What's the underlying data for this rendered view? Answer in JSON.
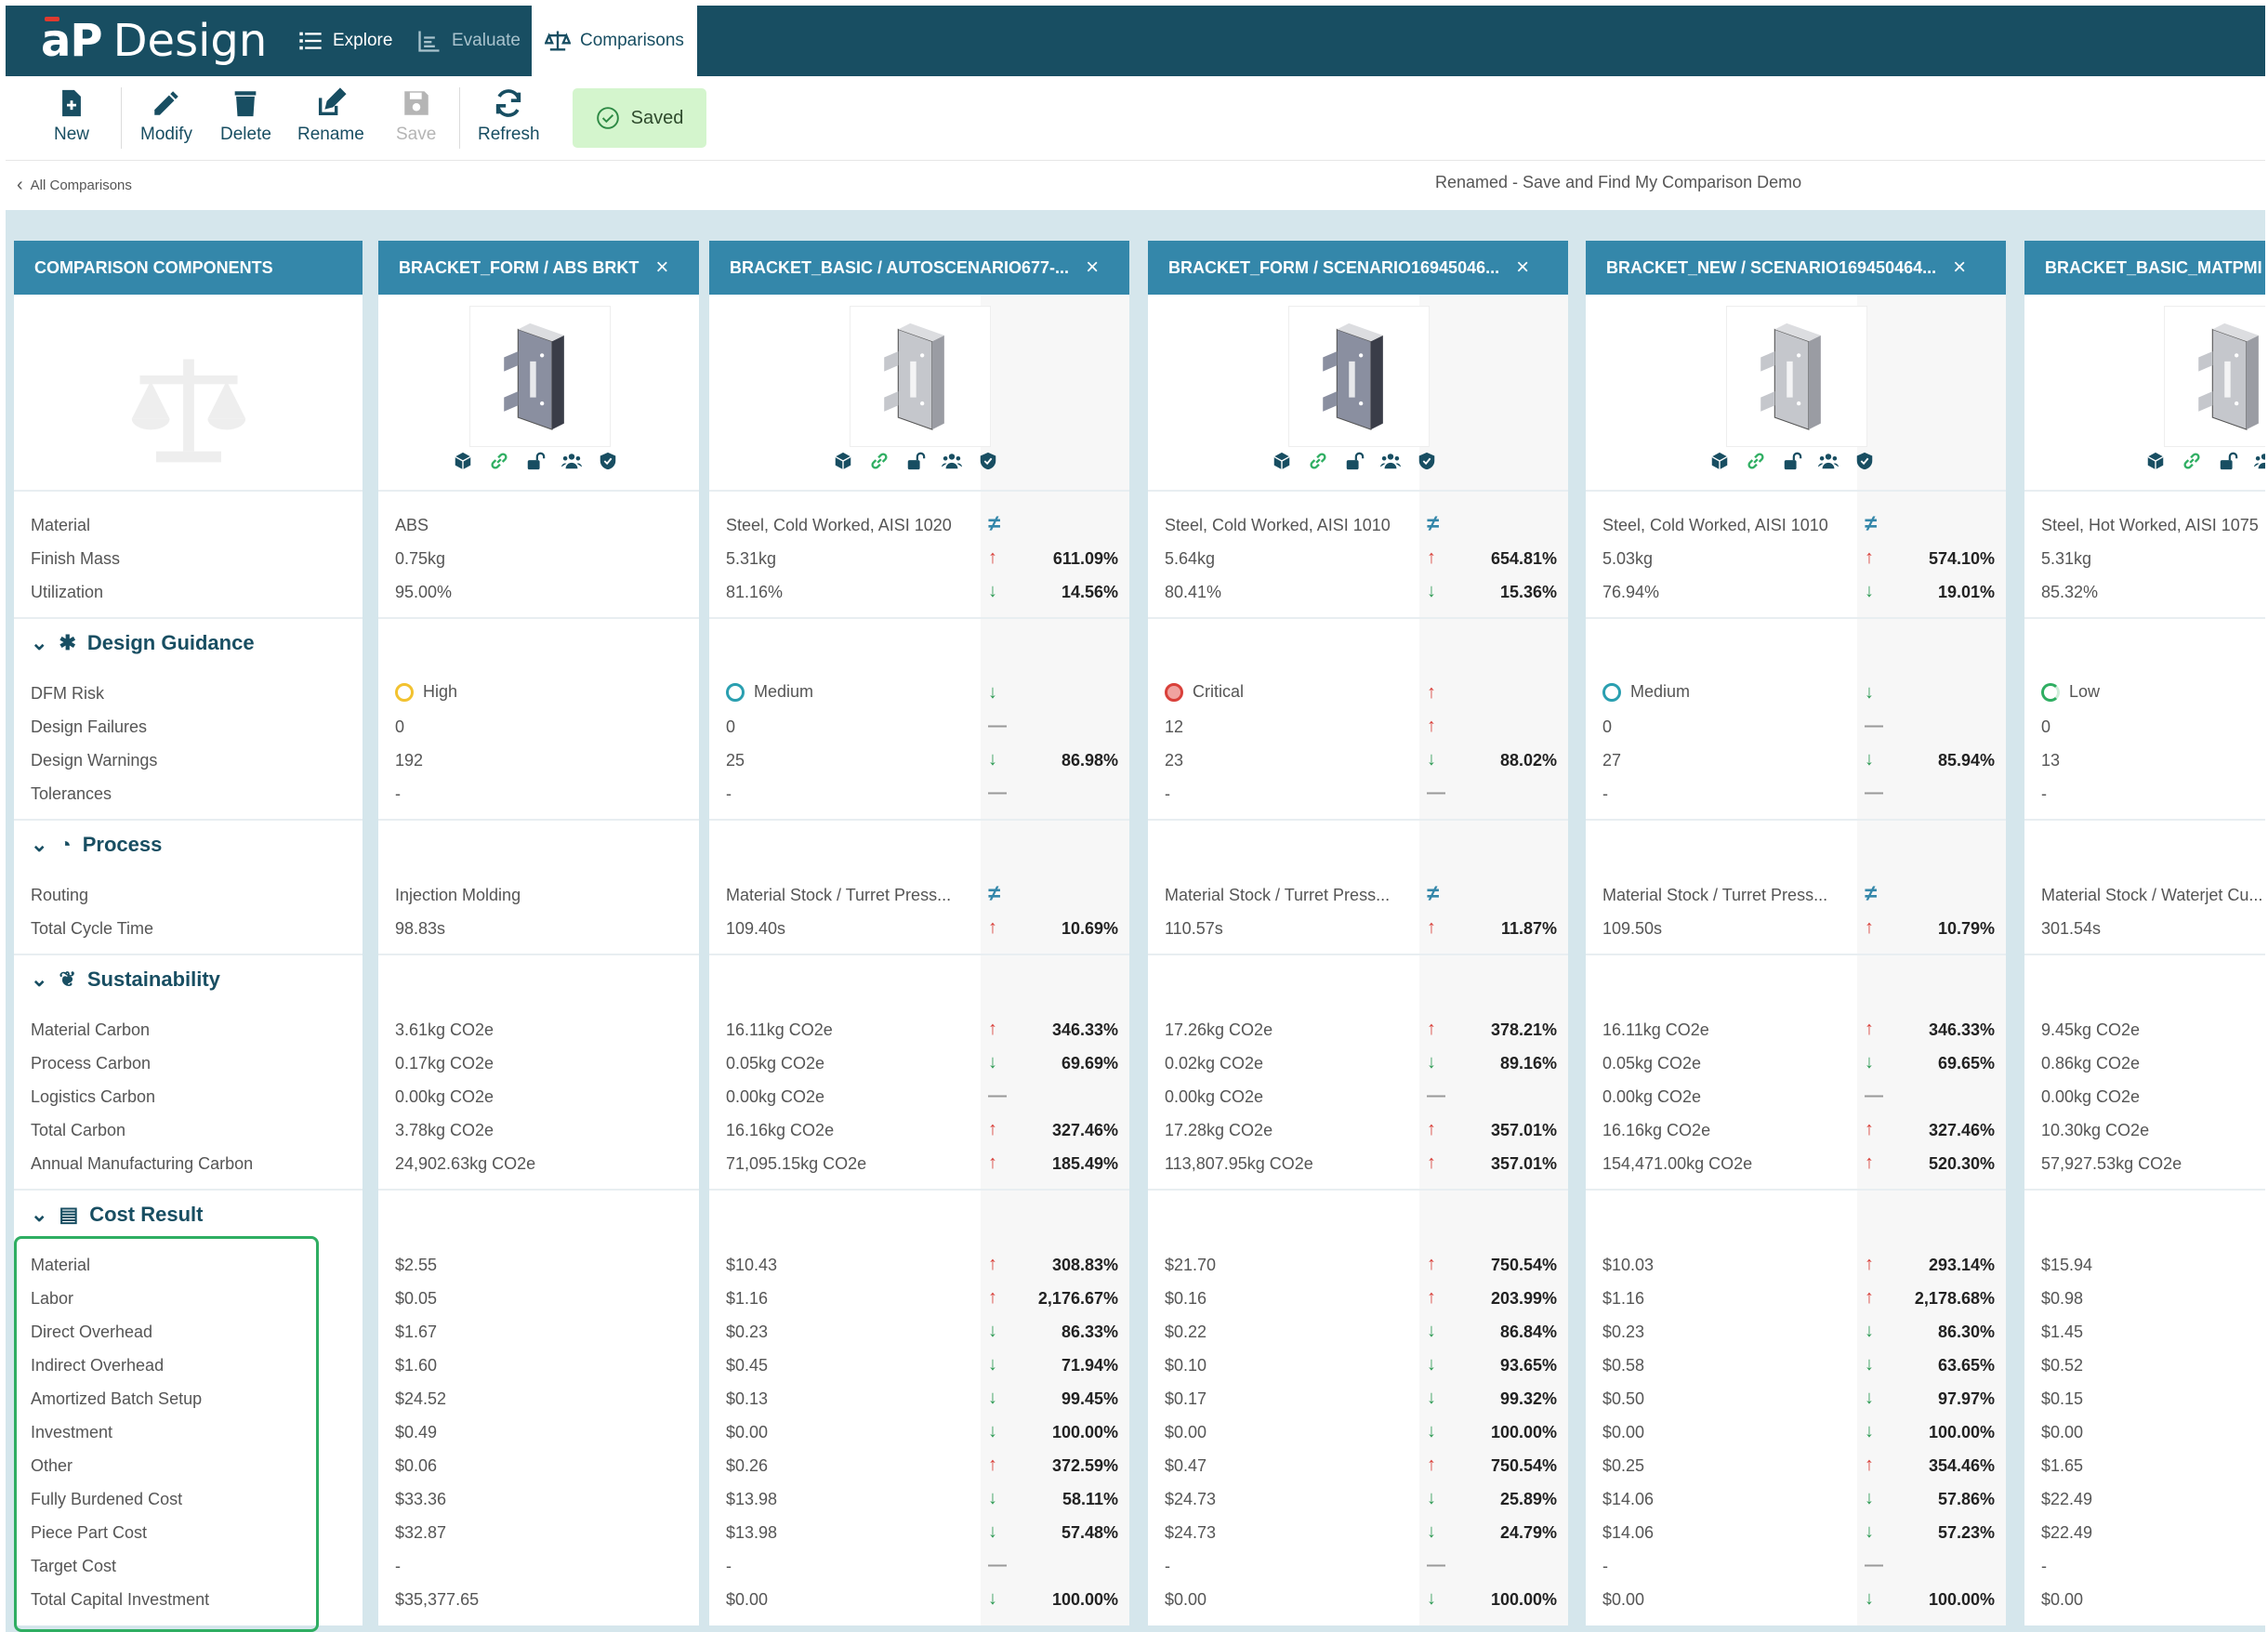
{
  "app": {
    "brand_ap": "aP",
    "brand_design": "Design"
  },
  "nav": {
    "explore": "Explore",
    "evaluate": "Evaluate",
    "comparisons": "Comparisons"
  },
  "toolbar": {
    "new": "New",
    "modify": "Modify",
    "delete": "Delete",
    "rename": "Rename",
    "save": "Save",
    "refresh": "Refresh",
    "saved": "Saved"
  },
  "breadcrumb": {
    "back": "All Comparisons",
    "name": "Renamed - Save and Find My Comparison Demo"
  },
  "labels": {
    "header": "COMPARISON COMPONENTS",
    "material": "Material",
    "finish_mass": "Finish Mass",
    "utilization": "Utilization",
    "design_guidance": "Design Guidance",
    "dfm_risk": "DFM Risk",
    "design_failures": "Design Failures",
    "design_warnings": "Design Warnings",
    "tolerances": "Tolerances",
    "process": "Process",
    "routing": "Routing",
    "total_cycle_time": "Total Cycle Time",
    "sustainability": "Sustainability",
    "material_carbon": "Material Carbon",
    "process_carbon": "Process Carbon",
    "logistics_carbon": "Logistics Carbon",
    "total_carbon": "Total Carbon",
    "annual_carbon": "Annual Manufacturing Carbon",
    "cost_result": "Cost Result",
    "c_material": "Material",
    "c_labor": "Labor",
    "c_direct": "Direct Overhead",
    "c_indirect": "Indirect Overhead",
    "c_batch": "Amortized Batch Setup",
    "c_invest": "Investment",
    "c_other": "Other",
    "c_fbc": "Fully Burdened Cost",
    "c_ppc": "Piece Part Cost",
    "c_target": "Target Cost",
    "c_tci": "Total Capital Investment"
  },
  "columns": [
    {
      "title": "BRACKET_FORM / ABS BRKT",
      "material": "ABS",
      "finish_mass": "0.75kg",
      "utilization": "95.00%",
      "dfm_risk": "High",
      "dfm_color": "#f2c230",
      "design_failures": "0",
      "design_warnings": "192",
      "tolerances": "-",
      "routing": "Injection Molding",
      "total_cycle_time": "98.83s",
      "material_carbon": "3.61kg CO2e",
      "process_carbon": "0.17kg CO2e",
      "logistics_carbon": "0.00kg CO2e",
      "total_carbon": "3.78kg CO2e",
      "annual_carbon": "24,902.63kg CO2e",
      "c_material": "$2.55",
      "c_labor": "$0.05",
      "c_direct": "$1.67",
      "c_indirect": "$1.60",
      "c_batch": "$24.52",
      "c_invest": "$0.49",
      "c_other": "$0.06",
      "c_fbc": "$33.36",
      "c_ppc": "$32.87",
      "c_target": "-",
      "c_tci": "$35,377.65"
    },
    {
      "title": "BRACKET_BASIC / AUTOSCENARIO677-...",
      "material": "Steel, Cold Worked, AISI 1020",
      "finish_mass": "5.31kg",
      "utilization": "81.16%",
      "finish_mass_pct": "611.09%",
      "utilization_pct": "14.56%",
      "dfm_risk": "Medium",
      "dfm_color": "#2a9fb0",
      "design_failures": "0",
      "design_warnings": "25",
      "design_warnings_pct": "86.98%",
      "tolerances": "-",
      "routing": "Material Stock / Turret Press...",
      "total_cycle_time": "109.40s",
      "total_cycle_time_pct": "10.69%",
      "material_carbon": "16.11kg CO2e",
      "material_carbon_pct": "346.33%",
      "process_carbon": "0.05kg CO2e",
      "process_carbon_pct": "69.69%",
      "logistics_carbon": "0.00kg CO2e",
      "total_carbon": "16.16kg CO2e",
      "total_carbon_pct": "327.46%",
      "annual_carbon": "71,095.15kg CO2e",
      "annual_carbon_pct": "185.49%",
      "c_material": "$10.43",
      "c_material_pct": "308.83%",
      "c_labor": "$1.16",
      "c_labor_pct": "2,176.67%",
      "c_direct": "$0.23",
      "c_direct_pct": "86.33%",
      "c_indirect": "$0.45",
      "c_indirect_pct": "71.94%",
      "c_batch": "$0.13",
      "c_batch_pct": "99.45%",
      "c_invest": "$0.00",
      "c_invest_pct": "100.00%",
      "c_other": "$0.26",
      "c_other_pct": "372.59%",
      "c_fbc": "$13.98",
      "c_fbc_pct": "58.11%",
      "c_ppc": "$13.98",
      "c_ppc_pct": "57.48%",
      "c_target": "-",
      "c_tci": "$0.00",
      "c_tci_pct": "100.00%"
    },
    {
      "title": "BRACKET_FORM / SCENARIO16945046...",
      "material": "Steel, Cold Worked, AISI 1010",
      "finish_mass": "5.64kg",
      "utilization": "80.41%",
      "finish_mass_pct": "654.81%",
      "utilization_pct": "15.36%",
      "dfm_risk": "Critical",
      "dfm_color": "#d9403a",
      "design_failures": "12",
      "design_warnings": "23",
      "design_warnings_pct": "88.02%",
      "tolerances": "-",
      "routing": "Material Stock / Turret Press...",
      "total_cycle_time": "110.57s",
      "total_cycle_time_pct": "11.87%",
      "material_carbon": "17.26kg CO2e",
      "material_carbon_pct": "378.21%",
      "process_carbon": "0.02kg CO2e",
      "process_carbon_pct": "89.16%",
      "logistics_carbon": "0.00kg CO2e",
      "total_carbon": "17.28kg CO2e",
      "total_carbon_pct": "357.01%",
      "annual_carbon": "113,807.95kg CO2e",
      "annual_carbon_pct": "357.01%",
      "c_material": "$21.70",
      "c_material_pct": "750.54%",
      "c_labor": "$0.16",
      "c_labor_pct": "203.99%",
      "c_direct": "$0.22",
      "c_direct_pct": "86.84%",
      "c_indirect": "$0.10",
      "c_indirect_pct": "93.65%",
      "c_batch": "$0.17",
      "c_batch_pct": "99.32%",
      "c_invest": "$0.00",
      "c_invest_pct": "100.00%",
      "c_other": "$0.47",
      "c_other_pct": "750.54%",
      "c_fbc": "$24.73",
      "c_fbc_pct": "25.89%",
      "c_ppc": "$24.73",
      "c_ppc_pct": "24.79%",
      "c_target": "-",
      "c_tci": "$0.00",
      "c_tci_pct": "100.00%"
    },
    {
      "title": "BRACKET_NEW / SCENARIO169450464...",
      "material": "Steel, Cold Worked, AISI 1010",
      "finish_mass": "5.03kg",
      "utilization": "76.94%",
      "finish_mass_pct": "574.10%",
      "utilization_pct": "19.01%",
      "dfm_risk": "Medium",
      "dfm_color": "#2a9fb0",
      "design_failures": "0",
      "design_warnings": "27",
      "design_warnings_pct": "85.94%",
      "tolerances": "-",
      "routing": "Material Stock / Turret Press...",
      "total_cycle_time": "109.50s",
      "total_cycle_time_pct": "10.79%",
      "material_carbon": "16.11kg CO2e",
      "material_carbon_pct": "346.33%",
      "process_carbon": "0.05kg CO2e",
      "process_carbon_pct": "69.65%",
      "logistics_carbon": "0.00kg CO2e",
      "total_carbon": "16.16kg CO2e",
      "total_carbon_pct": "327.46%",
      "annual_carbon": "154,471.00kg CO2e",
      "annual_carbon_pct": "520.30%",
      "c_material": "$10.03",
      "c_material_pct": "293.14%",
      "c_labor": "$1.16",
      "c_labor_pct": "2,178.68%",
      "c_direct": "$0.23",
      "c_direct_pct": "86.30%",
      "c_indirect": "$0.58",
      "c_indirect_pct": "63.65%",
      "c_batch": "$0.50",
      "c_batch_pct": "97.97%",
      "c_invest": "$0.00",
      "c_invest_pct": "100.00%",
      "c_other": "$0.25",
      "c_other_pct": "354.46%",
      "c_fbc": "$14.06",
      "c_fbc_pct": "57.86%",
      "c_ppc": "$14.06",
      "c_ppc_pct": "57.23%",
      "c_target": "-",
      "c_tci": "$0.00",
      "c_tci_pct": "100.00%"
    },
    {
      "title": "BRACKET_BASIC_MATPMI",
      "material": "Steel, Hot Worked, AISI 1075",
      "finish_mass": "5.31kg",
      "utilization": "85.32%",
      "dfm_risk": "Low",
      "dfm_color": "#2fae62",
      "design_failures": "0",
      "design_warnings": "13",
      "tolerances": "-",
      "routing": "Material Stock / Waterjet Cu...",
      "total_cycle_time": "301.54s",
      "material_carbon": "9.45kg CO2e",
      "process_carbon": "0.86kg CO2e",
      "logistics_carbon": "0.00kg CO2e",
      "total_carbon": "10.30kg CO2e",
      "annual_carbon": "57,927.53kg CO2e",
      "c_material": "$15.94",
      "c_labor": "$0.98",
      "c_direct": "$1.45",
      "c_indirect": "$0.52",
      "c_batch": "$0.15",
      "c_invest": "$0.00",
      "c_other": "$1.65",
      "c_fbc": "$22.49",
      "c_ppc": "$22.49",
      "c_target": "-",
      "c_tci": "$0.00"
    }
  ],
  "colors": {
    "nav": "#184e62",
    "header": "#3487aa",
    "up": "#d9403a",
    "down": "#2e9b55",
    "saved_bg": "#d4f5cd",
    "highlight": "#2fae62"
  }
}
